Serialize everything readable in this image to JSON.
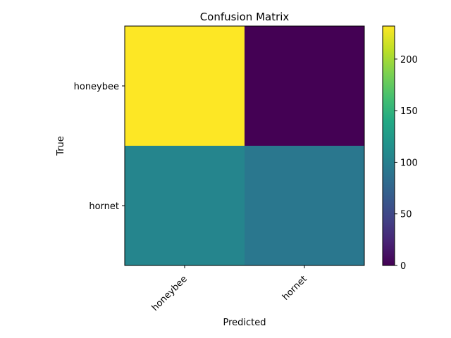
{
  "chart_data": {
    "type": "heatmap",
    "title": "Confusion Matrix",
    "xlabel": "Predicted",
    "ylabel": "True",
    "x_categories": [
      "honeybee",
      "hornet"
    ],
    "y_categories": [
      "honeybee",
      "hornet"
    ],
    "values": [
      [
        232,
        0
      ],
      [
        105,
        92
      ]
    ],
    "colormap": "viridis",
    "colorbar": {
      "range": [
        0,
        232
      ],
      "ticks": [
        0,
        50,
        100,
        150,
        200
      ]
    },
    "grid": false
  }
}
